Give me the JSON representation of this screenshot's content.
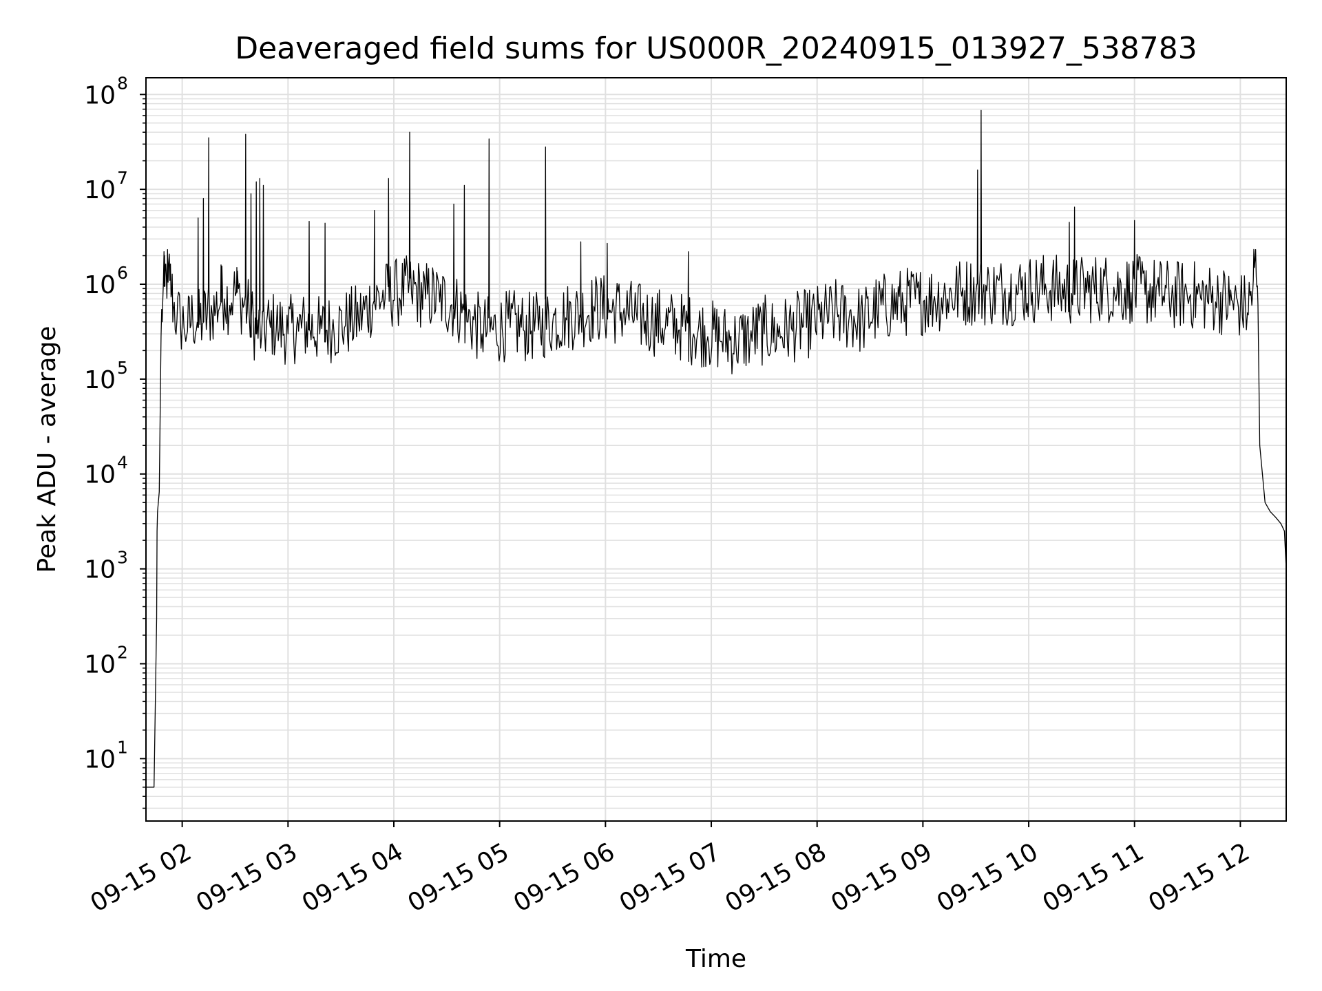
{
  "chart_data": {
    "type": "line",
    "title": "Deaveraged field sums for US000R_20240915_013927_538783",
    "xlabel": "Time",
    "ylabel": "Peak ADU - average",
    "y_scale": "log",
    "ylim": [
      2.2,
      150000000
    ],
    "xlim": [
      "2024-09-15 01:39:27",
      "2024-09-15 12:26:00"
    ],
    "grid": true,
    "legend": "none",
    "line_color": "#000000",
    "grid_color": "#e0e0e0",
    "x_ticks": [
      {
        "at": "2024-09-15 02:00",
        "label": "09-15 02"
      },
      {
        "at": "2024-09-15 03:00",
        "label": "09-15 03"
      },
      {
        "at": "2024-09-15 04:00",
        "label": "09-15 04"
      },
      {
        "at": "2024-09-15 05:00",
        "label": "09-15 05"
      },
      {
        "at": "2024-09-15 06:00",
        "label": "09-15 06"
      },
      {
        "at": "2024-09-15 07:00",
        "label": "09-15 07"
      },
      {
        "at": "2024-09-15 08:00",
        "label": "09-15 08"
      },
      {
        "at": "2024-09-15 09:00",
        "label": "09-15 09"
      },
      {
        "at": "2024-09-15 10:00",
        "label": "09-15 10"
      },
      {
        "at": "2024-09-15 11:00",
        "label": "09-15 11"
      },
      {
        "at": "2024-09-15 12:00",
        "label": "09-15 12"
      }
    ],
    "y_ticks": [
      {
        "value": 10,
        "base": "10",
        "exp": "1"
      },
      {
        "value": 100,
        "base": "10",
        "exp": "2"
      },
      {
        "value": 1000,
        "base": "10",
        "exp": "3"
      },
      {
        "value": 10000,
        "base": "10",
        "exp": "4"
      },
      {
        "value": 100000,
        "base": "10",
        "exp": "5"
      },
      {
        "value": 1000000,
        "base": "10",
        "exp": "6"
      },
      {
        "value": 10000000,
        "base": "10",
        "exp": "7"
      },
      {
        "value": 100000000,
        "base": "10",
        "exp": "8"
      }
    ],
    "series": [
      {
        "x": [
          "2024-09-15 01:39:30",
          "2024-09-15 01:44:00",
          "2024-09-15 01:45:30",
          "2024-09-15 01:45:45",
          "2024-09-15 01:46:00",
          "2024-09-15 01:47:00",
          "2024-09-15 01:48:00",
          "2024-09-15 01:49:00",
          "2024-09-15 01:50:00",
          "2024-09-15 01:51:00",
          "2024-09-15 01:52:00",
          "2024-09-15 01:53:00",
          "2024-09-15 01:54:00",
          "2024-09-15 01:55:00",
          "2024-09-15 01:57:00",
          "2024-09-15 01:59:00",
          "2024-09-15 02:01:00",
          "2024-09-15 02:03:00",
          "2024-09-15 02:06:00",
          "2024-09-15 02:09:00",
          "2024-09-15 02:12:00",
          "2024-09-15 02:17:00",
          "2024-09-15 02:19:00",
          "2024-09-15 02:22:00",
          "2024-09-15 02:24:00",
          "2024-09-15 02:27:00",
          "2024-09-15 02:29:00",
          "2024-09-15 02:33:00",
          "2024-09-15 02:38:00",
          "2024-09-15 02:42:00",
          "2024-09-15 02:45:00",
          "2024-09-15 02:50:00",
          "2024-09-15 02:55:00",
          "2024-09-15 03:00:00",
          "2024-09-15 03:06:00",
          "2024-09-15 03:12:00",
          "2024-09-15 03:18:00",
          "2024-09-15 03:25:00",
          "2024-09-15 03:32:00",
          "2024-09-15 03:40:00",
          "2024-09-15 03:48:00",
          "2024-09-15 03:55:00",
          "2024-09-15 04:02:00",
          "2024-09-15 04:10:00",
          "2024-09-15 04:18:00",
          "2024-09-15 04:26:00",
          "2024-09-15 04:34:00",
          "2024-09-15 04:42:00",
          "2024-09-15 04:50:00",
          "2024-09-15 04:58:00",
          "2024-09-15 05:06:00",
          "2024-09-15 05:14:00",
          "2024-09-15 05:22:00",
          "2024-09-15 05:30:00",
          "2024-09-15 05:38:00",
          "2024-09-15 05:46:00",
          "2024-09-15 05:54:00",
          "2024-09-15 06:02:00",
          "2024-09-15 06:10:00",
          "2024-09-15 06:18:00",
          "2024-09-15 06:26:00",
          "2024-09-15 06:34:00",
          "2024-09-15 06:42:00",
          "2024-09-15 06:50:00",
          "2024-09-15 06:58:00",
          "2024-09-15 07:06:00",
          "2024-09-15 07:14:00",
          "2024-09-15 07:22:00",
          "2024-09-15 07:30:00",
          "2024-09-15 07:38:00",
          "2024-09-15 07:46:00",
          "2024-09-15 07:54:00",
          "2024-09-15 08:02:00",
          "2024-09-15 08:10:00",
          "2024-09-15 08:18:00",
          "2024-09-15 08:26:00",
          "2024-09-15 08:34:00",
          "2024-09-15 08:42:00",
          "2024-09-15 08:50:00",
          "2024-09-15 08:58:00",
          "2024-09-15 09:06:00",
          "2024-09-15 09:14:00",
          "2024-09-15 09:22:00",
          "2024-09-15 09:30:00",
          "2024-09-15 09:38:00",
          "2024-09-15 09:46:00",
          "2024-09-15 09:54:00",
          "2024-09-15 10:02:00",
          "2024-09-15 10:10:00",
          "2024-09-15 10:18:00",
          "2024-09-15 10:26:00",
          "2024-09-15 10:34:00",
          "2024-09-15 10:42:00",
          "2024-09-15 10:50:00",
          "2024-09-15 10:58:00",
          "2024-09-15 11:06:00",
          "2024-09-15 11:14:00",
          "2024-09-15 11:22:00",
          "2024-09-15 11:30:00",
          "2024-09-15 11:38:00",
          "2024-09-15 11:46:00",
          "2024-09-15 11:54:00",
          "2024-09-15 12:00:00",
          "2024-09-15 12:04:00",
          "2024-09-15 12:07:00",
          "2024-09-15 12:08:00",
          "2024-09-15 12:09:00",
          "2024-09-15 12:10:00",
          "2024-09-15 12:11:00",
          "2024-09-15 12:14:00",
          "2024-09-15 12:17:00",
          "2024-09-15 12:20:00",
          "2024-09-15 12:23:00",
          "2024-09-15 12:25:00",
          "2024-09-15 12:26:00"
        ],
        "y": [
          5,
          5,
          300,
          2500,
          4000,
          6500,
          280000,
          700000,
          950000,
          1200000,
          1050000,
          1100000,
          800000,
          550000,
          420000,
          380000,
          350000,
          320000,
          420000,
          350000,
          400000,
          480000,
          520000,
          650000,
          700000,
          600000,
          750000,
          650000,
          450000,
          300000,
          280000,
          350000,
          320000,
          300000,
          320000,
          330000,
          300000,
          320000,
          350000,
          400000,
          600000,
          700000,
          750000,
          800000,
          700000,
          650000,
          550000,
          400000,
          300000,
          300000,
          350000,
          320000,
          330000,
          380000,
          420000,
          450000,
          520000,
          500000,
          480000,
          420000,
          380000,
          350000,
          330000,
          300000,
          280000,
          250000,
          230000,
          260000,
          300000,
          280000,
          320000,
          350000,
          400000,
          450000,
          420000,
          380000,
          500000,
          550000,
          600000,
          620000,
          650000,
          700000,
          750000,
          800000,
          760000,
          780000,
          800000,
          820000,
          850000,
          800000,
          780000,
          820000,
          850000,
          800000,
          820000,
          780000,
          750000,
          700000,
          720000,
          680000,
          650000,
          600000,
          550000,
          500000,
          800000,
          1500000,
          1200000,
          600000,
          20000,
          5000,
          4000,
          3500,
          3000,
          2500,
          1000
        ],
        "spikes": [
          {
            "x": "2024-09-15 01:50:00",
            "y": 2000000
          },
          {
            "x": "2024-09-15 02:09:00",
            "y": 5000000
          },
          {
            "x": "2024-09-15 02:12:00",
            "y": 8000000
          },
          {
            "x": "2024-09-15 02:15:00",
            "y": 35000000
          },
          {
            "x": "2024-09-15 02:22:00",
            "y": 1600000
          },
          {
            "x": "2024-09-15 02:31:00",
            "y": 1500000
          },
          {
            "x": "2024-09-15 02:36:00",
            "y": 38000000
          },
          {
            "x": "2024-09-15 02:39:00",
            "y": 9000000
          },
          {
            "x": "2024-09-15 02:42:00",
            "y": 12000000
          },
          {
            "x": "2024-09-15 02:44:00",
            "y": 13000000
          },
          {
            "x": "2024-09-15 02:46:00",
            "y": 11000000
          },
          {
            "x": "2024-09-15 03:12:00",
            "y": 4600000
          },
          {
            "x": "2024-09-15 03:21:00",
            "y": 4400000
          },
          {
            "x": "2024-09-15 03:49:00",
            "y": 6000000
          },
          {
            "x": "2024-09-15 03:57:00",
            "y": 13000000
          },
          {
            "x": "2024-09-15 04:09:00",
            "y": 40000000
          },
          {
            "x": "2024-09-15 04:34:00",
            "y": 7000000
          },
          {
            "x": "2024-09-15 04:40:00",
            "y": 11000000
          },
          {
            "x": "2024-09-15 04:54:00",
            "y": 34000000
          },
          {
            "x": "2024-09-15 05:26:00",
            "y": 28000000
          },
          {
            "x": "2024-09-15 05:46:00",
            "y": 2800000
          },
          {
            "x": "2024-09-15 06:01:00",
            "y": 2700000
          },
          {
            "x": "2024-09-15 06:47:00",
            "y": 2200000
          },
          {
            "x": "2024-09-15 09:31:00",
            "y": 16000000
          },
          {
            "x": "2024-09-15 09:33:00",
            "y": 68000000
          },
          {
            "x": "2024-09-15 10:23:00",
            "y": 4500000
          },
          {
            "x": "2024-09-15 10:26:00",
            "y": 6500000
          },
          {
            "x": "2024-09-15 11:00:00",
            "y": 4700000
          }
        ]
      }
    ]
  }
}
